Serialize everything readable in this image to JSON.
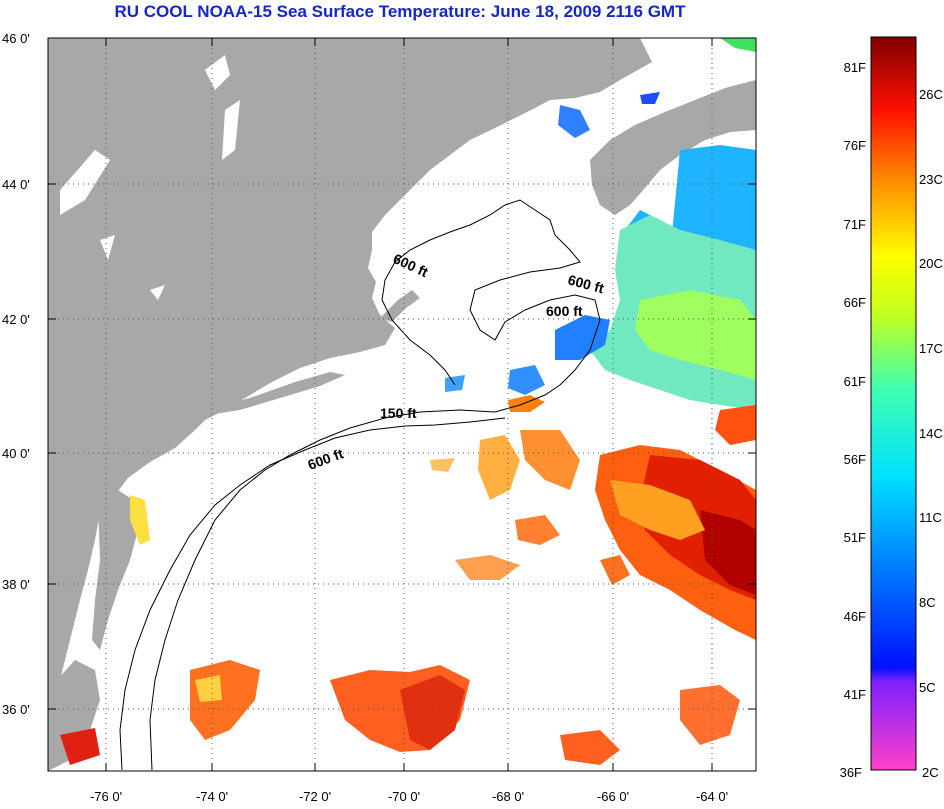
{
  "title": "RU COOL  NOAA-15  Sea Surface Temperature:  June 18, 2009 2116 GMT",
  "lat_labels": [
    "46 0'",
    "44 0'",
    "42 0'",
    "40 0'",
    "38 0'",
    "36 0'"
  ],
  "lon_labels": [
    "-76 0'",
    "-74 0'",
    "-72 0'",
    "-70 0'",
    "-68 0'",
    "-66 0'",
    "-64 0'"
  ],
  "contour_labels": [
    "600 ft",
    "600 ft",
    "600 ft",
    "150 ft",
    "600 ft"
  ],
  "colorbar": {
    "fahrenheit": [
      "81F",
      "76F",
      "71F",
      "66F",
      "61F",
      "56F",
      "51F",
      "46F",
      "41F",
      "36F"
    ],
    "celsius": [
      "26C",
      "23C",
      "20C",
      "17C",
      "14C",
      "11C",
      "8C",
      "5C",
      "2C"
    ]
  },
  "colors": {
    "land": "#a8a8a8",
    "ocean": "#ffffff",
    "title": "#1428c8"
  }
}
